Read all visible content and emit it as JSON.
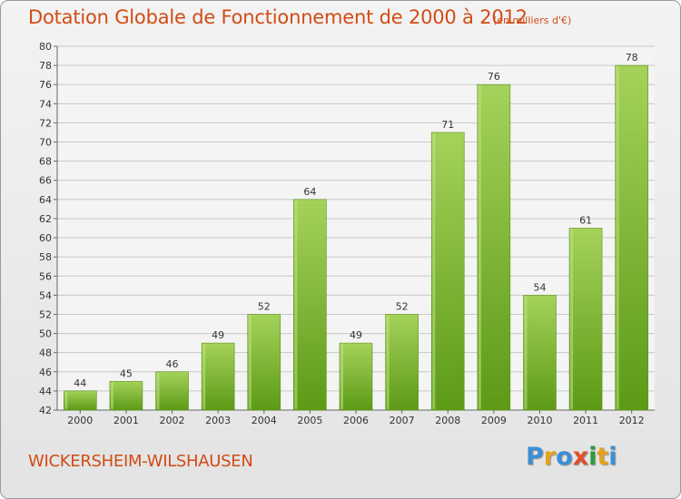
{
  "colors": {
    "title": "#d24b14",
    "bar_light": "#a5d25a",
    "bar_dark": "#5c9a16",
    "grid": "#c8c8c8"
  },
  "logo": {
    "text": "Proxiti",
    "letter_colors": [
      "#3c8fd2",
      "#e6a11f",
      "#3c8fd2",
      "#e0502a",
      "#2f9a3c",
      "#e6a11f",
      "#3c8fd2"
    ]
  },
  "commune": "WICKERSHEIM-WILSHAUSEN",
  "chart_data": {
    "type": "bar",
    "title": "Dotation Globale de Fonctionnement de 2000 à 2012",
    "subtitle": "(en milliers d'€)",
    "xlabel": "",
    "ylabel": "",
    "categories": [
      "2000",
      "2001",
      "2002",
      "2003",
      "2004",
      "2005",
      "2006",
      "2007",
      "2008",
      "2009",
      "2010",
      "2011",
      "2012"
    ],
    "values": [
      44,
      45,
      46,
      49,
      52,
      64,
      49,
      52,
      71,
      76,
      54,
      61,
      78
    ],
    "ylim": [
      42,
      80
    ],
    "ytick_step": 2,
    "grid": true,
    "legend": "none"
  }
}
